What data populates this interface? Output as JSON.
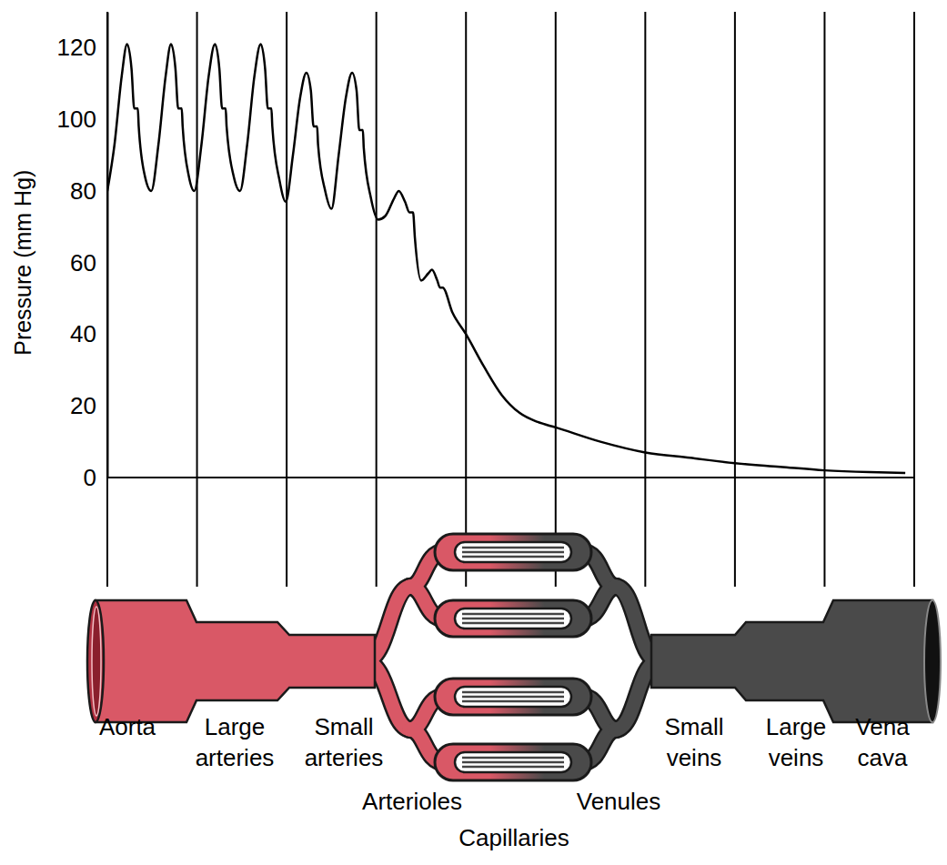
{
  "chart_data": {
    "type": "line",
    "y_label": "Pressure (mm Hg)",
    "x": [
      0.0,
      0.08,
      0.16,
      0.22,
      0.27,
      0.3,
      0.34,
      0.35,
      0.42,
      0.49,
      0.57,
      0.65,
      0.71,
      0.76,
      0.79,
      0.83,
      0.84,
      0.91,
      0.97,
      1.05,
      1.13,
      1.2,
      1.25,
      1.28,
      1.32,
      1.33,
      1.41,
      1.48,
      1.56,
      1.64,
      1.71,
      1.76,
      1.79,
      1.83,
      1.84,
      1.92,
      1.99,
      2.07,
      2.15,
      2.22,
      2.27,
      2.3,
      2.34,
      2.35,
      2.43,
      2.5,
      2.58,
      2.66,
      2.73,
      2.78,
      2.81,
      2.85,
      2.86,
      2.94,
      3.02,
      3.1,
      3.2,
      3.25,
      3.32,
      3.37,
      3.41,
      3.43,
      3.5,
      3.58,
      3.62,
      3.68,
      3.71,
      3.74,
      3.85,
      4.0,
      4.2,
      4.4,
      4.6,
      4.8,
      5.0,
      5.5,
      6.0,
      6.5,
      7.0,
      7.5,
      8.0,
      8.5,
      8.9
    ],
    "values": [
      80,
      93,
      112,
      121,
      114,
      103,
      103,
      98,
      84,
      80,
      93,
      112,
      121,
      114,
      103,
      103,
      98,
      84,
      80,
      93,
      112,
      121,
      114,
      103,
      103,
      98,
      84,
      80,
      93,
      112,
      121,
      114,
      103,
      103,
      98,
      83,
      77,
      90,
      106,
      113,
      108,
      98,
      98,
      93,
      80,
      75,
      90,
      106,
      113,
      108,
      97,
      97,
      92,
      78,
      72,
      73,
      78,
      80,
      77,
      74,
      74,
      67,
      55,
      57,
      58,
      55,
      53,
      53,
      46,
      40,
      31,
      23,
      18,
      15.5,
      14,
      10,
      7,
      5.5,
      4,
      3,
      2,
      1.5,
      1.3
    ],
    "color": "#000000",
    "xlim": [
      0,
      9
    ],
    "xticks": [
      0,
      1,
      2,
      3,
      4,
      5,
      6,
      7,
      8,
      9
    ],
    "ylim": [
      0,
      130
    ],
    "yticks": [
      0,
      20,
      40,
      60,
      80,
      100,
      120
    ],
    "tick_labels": "y",
    "grid": true,
    "segments": [
      "Aorta",
      "Large arteries",
      "Small arteries",
      "Arterioles",
      "Capillaries",
      "Venules",
      "Small veins",
      "Large veins",
      "Vena cava"
    ]
  }
}
